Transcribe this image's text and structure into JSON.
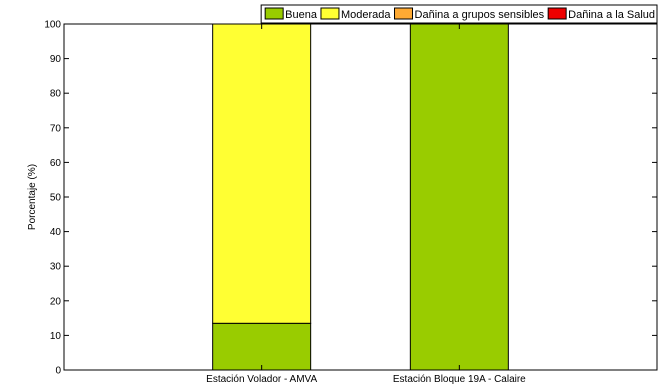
{
  "chart_data": {
    "type": "bar",
    "stacked": true,
    "categories": [
      "Estación Volador - AMVA",
      "Estación Bloque 19A - Calaire"
    ],
    "series": [
      {
        "name": "Buena",
        "color": "#99cc00",
        "values": [
          13.5,
          100
        ]
      },
      {
        "name": "Moderada",
        "color": "#ffff33",
        "values": [
          86.5,
          0
        ]
      },
      {
        "name": "Dañina a grupos sensibles",
        "color": "#ffaa33",
        "values": [
          0,
          0
        ]
      },
      {
        "name": "Dañina a la Salud",
        "color": "#ee0000",
        "values": [
          0,
          0
        ]
      }
    ],
    "title": "",
    "xlabel": "",
    "ylabel": "Porcentaje (%)",
    "ylim": [
      0,
      100
    ],
    "yticks": [
      0,
      10,
      20,
      30,
      40,
      50,
      60,
      70,
      80,
      90,
      100
    ],
    "grid": false,
    "legend": "top-right"
  }
}
